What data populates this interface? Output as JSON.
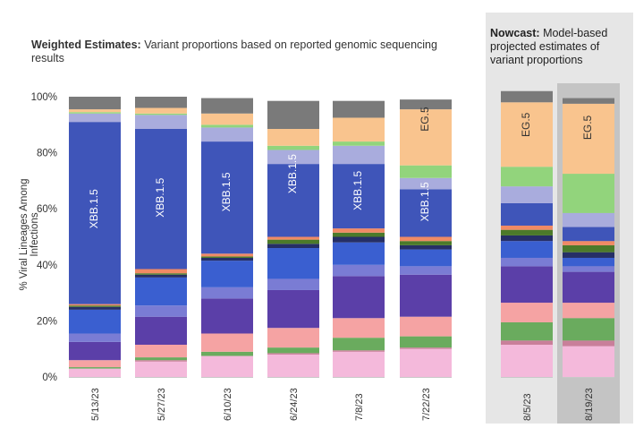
{
  "header": {
    "title_bold": "Weighted Estimates:",
    "title_rest": "Variant proportions based on reported genomic sequencing results",
    "nowcast_bold": "Nowcast:",
    "nowcast_rest": "Model-based projected estimates of variant proportions"
  },
  "colors": {
    "nowcast_panel_bg": "#e6e6e6",
    "nowcast_highlight_bg": "#c4c4c4",
    "axis_line": "#c8c8c8"
  },
  "chart_data": {
    "type": "bar",
    "stacked": true,
    "ylabel": "% Viral Lineages Among Infections",
    "ylim": [
      0,
      100
    ],
    "yticks": [
      "0%",
      "20%",
      "40%",
      "60%",
      "80%",
      "100%"
    ],
    "categories": [
      "5/13/23",
      "5/27/23",
      "6/10/23",
      "6/24/23",
      "7/8/23",
      "7/22/23",
      "8/5/23",
      "8/19/23"
    ],
    "nowcast_categories": [
      "8/5/23",
      "8/19/23"
    ],
    "highlighted_category": "8/19/23",
    "series": [
      {
        "color": "#f4b9db",
        "values": [
          3,
          5.5,
          7.5,
          8,
          9,
          10,
          11.5,
          11
        ]
      },
      {
        "color": "#c97f9a",
        "values": [
          0,
          0.5,
          0,
          0.5,
          0.5,
          0.5,
          1.5,
          2
        ]
      },
      {
        "color": "#6aab5e",
        "values": [
          0.5,
          1,
          1.5,
          2,
          4.5,
          4,
          6.5,
          8
        ]
      },
      {
        "color": "#f5a3a3",
        "values": [
          2.5,
          4.5,
          6.5,
          7,
          7,
          7,
          7,
          5.5
        ]
      },
      {
        "color": "#5b3fa8",
        "values": [
          6.5,
          10,
          12.5,
          13.5,
          15,
          15,
          13,
          11
        ]
      },
      {
        "color": "#7a7cd4",
        "values": [
          3,
          4,
          4,
          4,
          4,
          3,
          3,
          2
        ]
      },
      {
        "color": "#3a5fd0",
        "values": [
          8.5,
          10,
          9.5,
          11,
          8,
          6,
          6,
          3
        ]
      },
      {
        "color": "#262f66",
        "values": [
          1,
          1,
          1,
          1.5,
          2,
          1.5,
          2,
          2
        ]
      },
      {
        "color": "#4c7a2a",
        "values": [
          0.5,
          0.5,
          0.5,
          1.5,
          1.5,
          1.5,
          2,
          2.5
        ]
      },
      {
        "color": "#f08a65",
        "values": [
          0.5,
          1.5,
          1,
          1,
          1.5,
          1.5,
          1.5,
          1.5
        ]
      },
      {
        "color": "#3f55b9",
        "values": [
          65,
          50,
          40,
          26,
          23,
          17,
          8,
          5
        ]
      },
      {
        "color": "#a9acdd",
        "values": [
          3,
          5,
          5,
          5,
          6.5,
          4,
          6,
          5
        ]
      },
      {
        "color": "#92d47c",
        "values": [
          0.5,
          0.5,
          1,
          1.5,
          1.5,
          4.5,
          7,
          14
        ]
      },
      {
        "color": "#f9c48e",
        "values": [
          1,
          2,
          4,
          6,
          8.5,
          20,
          23,
          25
        ]
      },
      {
        "color": "#7a7a7a",
        "values": [
          4.5,
          4,
          5.5,
          10,
          6,
          3.5,
          4,
          2
        ]
      }
    ],
    "annotations": [
      {
        "category": "5/13/23",
        "text": "XBB.1.5",
        "center": 60,
        "dark": false
      },
      {
        "category": "5/27/23",
        "text": "XBB.1.5",
        "center": 64,
        "dark": false
      },
      {
        "category": "6/10/23",
        "text": "XBB.1.5",
        "center": 66,
        "dark": false
      },
      {
        "category": "6/24/23",
        "text": "XBB.1.5",
        "center": 72.5,
        "dark": false
      },
      {
        "category": "7/8/23",
        "text": "XBB.1.5",
        "center": 66.5,
        "dark": false
      },
      {
        "category": "7/22/23",
        "text": "XBB.1.5",
        "center": 62.5,
        "dark": false
      },
      {
        "category": "7/22/23",
        "text": "EG.5",
        "center": 92,
        "dark": true
      },
      {
        "category": "8/5/23",
        "text": "EG.5",
        "center": 90,
        "dark": true
      },
      {
        "category": "8/19/23",
        "text": "EG.5",
        "center": 89,
        "dark": true
      }
    ]
  }
}
